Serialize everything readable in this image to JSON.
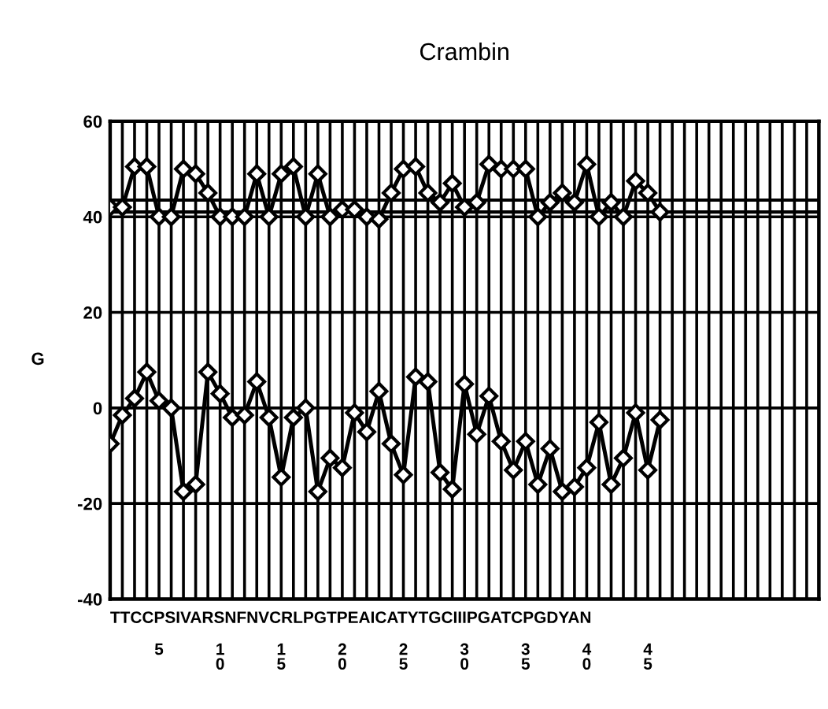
{
  "chart_data": {
    "type": "line",
    "title": "Crambin",
    "xlabel": "TTCCPSIVARSNFNVCRLPGTPEAICATYTGCIIIPGATCPGDYAN",
    "ylabel": "G",
    "x": [
      1,
      2,
      3,
      4,
      5,
      6,
      7,
      8,
      9,
      10,
      11,
      12,
      13,
      14,
      15,
      16,
      17,
      18,
      19,
      20,
      21,
      22,
      23,
      24,
      25,
      26,
      27,
      28,
      29,
      30,
      31,
      32,
      33,
      34,
      35,
      36,
      37,
      38,
      39,
      40,
      41,
      42,
      43,
      44,
      45,
      46
    ],
    "series": [
      {
        "color": "#000000",
        "values": [
          42,
          42,
          50.5,
          50.5,
          40,
          40,
          50,
          49,
          45,
          40,
          40,
          40,
          49,
          40,
          49,
          50.5,
          40,
          49,
          40,
          41.5,
          41.5,
          40,
          39.5,
          45,
          50,
          50.5,
          45,
          43,
          47,
          42,
          43,
          51,
          50,
          50,
          50,
          40,
          43,
          45,
          43,
          51,
          40,
          43,
          40,
          47.5,
          45,
          41
        ]
      },
      {
        "color": "#000000",
        "values": [
          -7.5,
          -1.5,
          2,
          7.5,
          1.5,
          0,
          -17.5,
          -16,
          7.5,
          3,
          -2,
          -1.5,
          5.5,
          -2,
          -14.5,
          -2,
          0,
          -17.5,
          -10.5,
          -12.5,
          -1,
          -5,
          3.5,
          -7.5,
          -14,
          6.5,
          5.5,
          -13.5,
          -17,
          5,
          -5.5,
          2.5,
          -7,
          -13,
          -7,
          -16,
          -8.5,
          -17.5,
          -16.5,
          -12.5,
          -3,
          -16,
          -10.5,
          -1,
          -13,
          -2.5
        ]
      }
    ],
    "marker": "diamond",
    "line_style": "solid",
    "grid": true,
    "ref_lines": [
      {
        "axis": "y",
        "value": 43.5,
        "color": "#000000"
      },
      {
        "axis": "y",
        "value": 41,
        "color": "#000000"
      }
    ],
    "xlim": [
      1,
      59
    ],
    "ylim": [
      -40,
      60
    ],
    "yticks": [
      -40,
      -20,
      0,
      20,
      40,
      60
    ],
    "xticks": [
      {
        "value": 1,
        "label": null
      },
      {
        "value": 2,
        "label": null
      },
      {
        "value": 3,
        "label": null
      },
      {
        "value": 4,
        "label": null
      },
      5,
      {
        "value": 6,
        "label": null
      },
      {
        "value": 7,
        "label": null
      },
      {
        "value": 8,
        "label": null
      },
      {
        "value": 9,
        "label": null
      },
      10,
      {
        "value": 11,
        "label": null
      },
      {
        "value": 12,
        "label": null
      },
      {
        "value": 13,
        "label": null
      },
      {
        "value": 14,
        "label": null
      },
      15,
      {
        "value": 16,
        "label": null
      },
      {
        "value": 17,
        "label": null
      },
      {
        "value": 18,
        "label": null
      },
      {
        "value": 19,
        "label": null
      },
      20,
      {
        "value": 21,
        "label": null
      },
      {
        "value": 22,
        "label": null
      },
      {
        "value": 23,
        "label": null
      },
      {
        "value": 24,
        "label": null
      },
      25,
      {
        "value": 26,
        "label": null
      },
      {
        "value": 27,
        "label": null
      },
      {
        "value": 28,
        "label": null
      },
      {
        "value": 29,
        "label": null
      },
      30,
      {
        "value": 31,
        "label": null
      },
      {
        "value": 32,
        "label": null
      },
      {
        "value": 33,
        "label": null
      },
      {
        "value": 34,
        "label": null
      },
      35,
      {
        "value": 36,
        "label": null
      },
      {
        "value": 37,
        "label": null
      },
      {
        "value": 38,
        "label": null
      },
      {
        "value": 39,
        "label": null
      },
      40,
      {
        "value": 41,
        "label": null
      },
      {
        "value": 42,
        "label": null
      },
      {
        "value": 43,
        "label": null
      },
      {
        "value": 44,
        "label": null
      },
      45,
      {
        "value": 46,
        "label": null
      },
      {
        "value": 47,
        "label": null
      },
      {
        "value": 48,
        "label": null
      },
      {
        "value": 49,
        "label": null
      },
      {
        "value": 50,
        "label": null
      },
      {
        "value": 51,
        "label": null
      },
      {
        "value": 52,
        "label": null
      },
      {
        "value": 53,
        "label": null
      },
      {
        "value": 54,
        "label": null
      },
      {
        "value": 55,
        "label": null
      },
      {
        "value": 56,
        "label": null
      },
      {
        "value": 57,
        "label": null
      },
      {
        "value": 58,
        "label": null
      },
      {
        "value": 59,
        "label": null
      }
    ]
  }
}
